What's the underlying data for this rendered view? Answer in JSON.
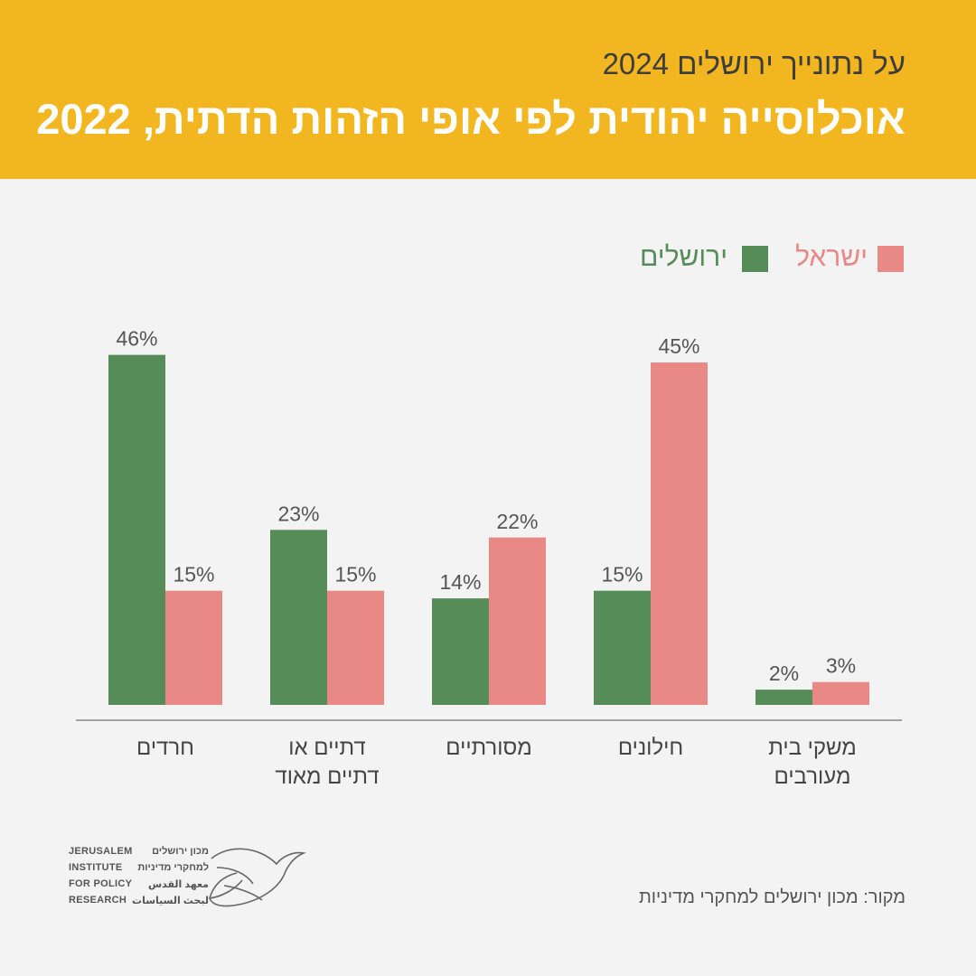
{
  "header": {
    "subtitle": "על נתונייך ירושלים 2024",
    "title": "אוכלוסייה יהודית לפי אופי הזהות הדתית, 2022"
  },
  "legend": {
    "jerusalem": "ירושלים",
    "israel": "ישראל"
  },
  "colors": {
    "header_bg": "#f2b620",
    "jerusalem": "#568c57",
    "israel": "#e88985",
    "background": "#f3f3f3"
  },
  "chart_data": {
    "type": "bar",
    "categories": [
      [
        "חרדים"
      ],
      [
        "דתיים או",
        "דתיים מאוד"
      ],
      [
        "מסורתיים"
      ],
      [
        "חילונים"
      ],
      [
        "משקי בית",
        "מעורבים"
      ]
    ],
    "series": [
      {
        "name": "ירושלים",
        "values": [
          46,
          23,
          14,
          15,
          2
        ],
        "labels": [
          "46%",
          "23%",
          "14%",
          "15%",
          "2%"
        ]
      },
      {
        "name": "ישראל",
        "values": [
          15,
          15,
          22,
          45,
          3
        ],
        "labels": [
          "15%",
          "15%",
          "22%",
          "45%",
          "3%"
        ]
      }
    ],
    "ylim": [
      0,
      50
    ],
    "legend_position": "top-right",
    "grid": false
  },
  "logo": {
    "en_lines": [
      "JERUSALEM",
      "INSTITUTE",
      "FOR POLICY",
      "RESEARCH"
    ],
    "he_lines": [
      "מכון ירושלים",
      "למחקרי מדיניות",
      "معهد القدس",
      "لبحث السياسات"
    ]
  },
  "source": "מקור: מכון ירושלים למחקרי מדיניות"
}
